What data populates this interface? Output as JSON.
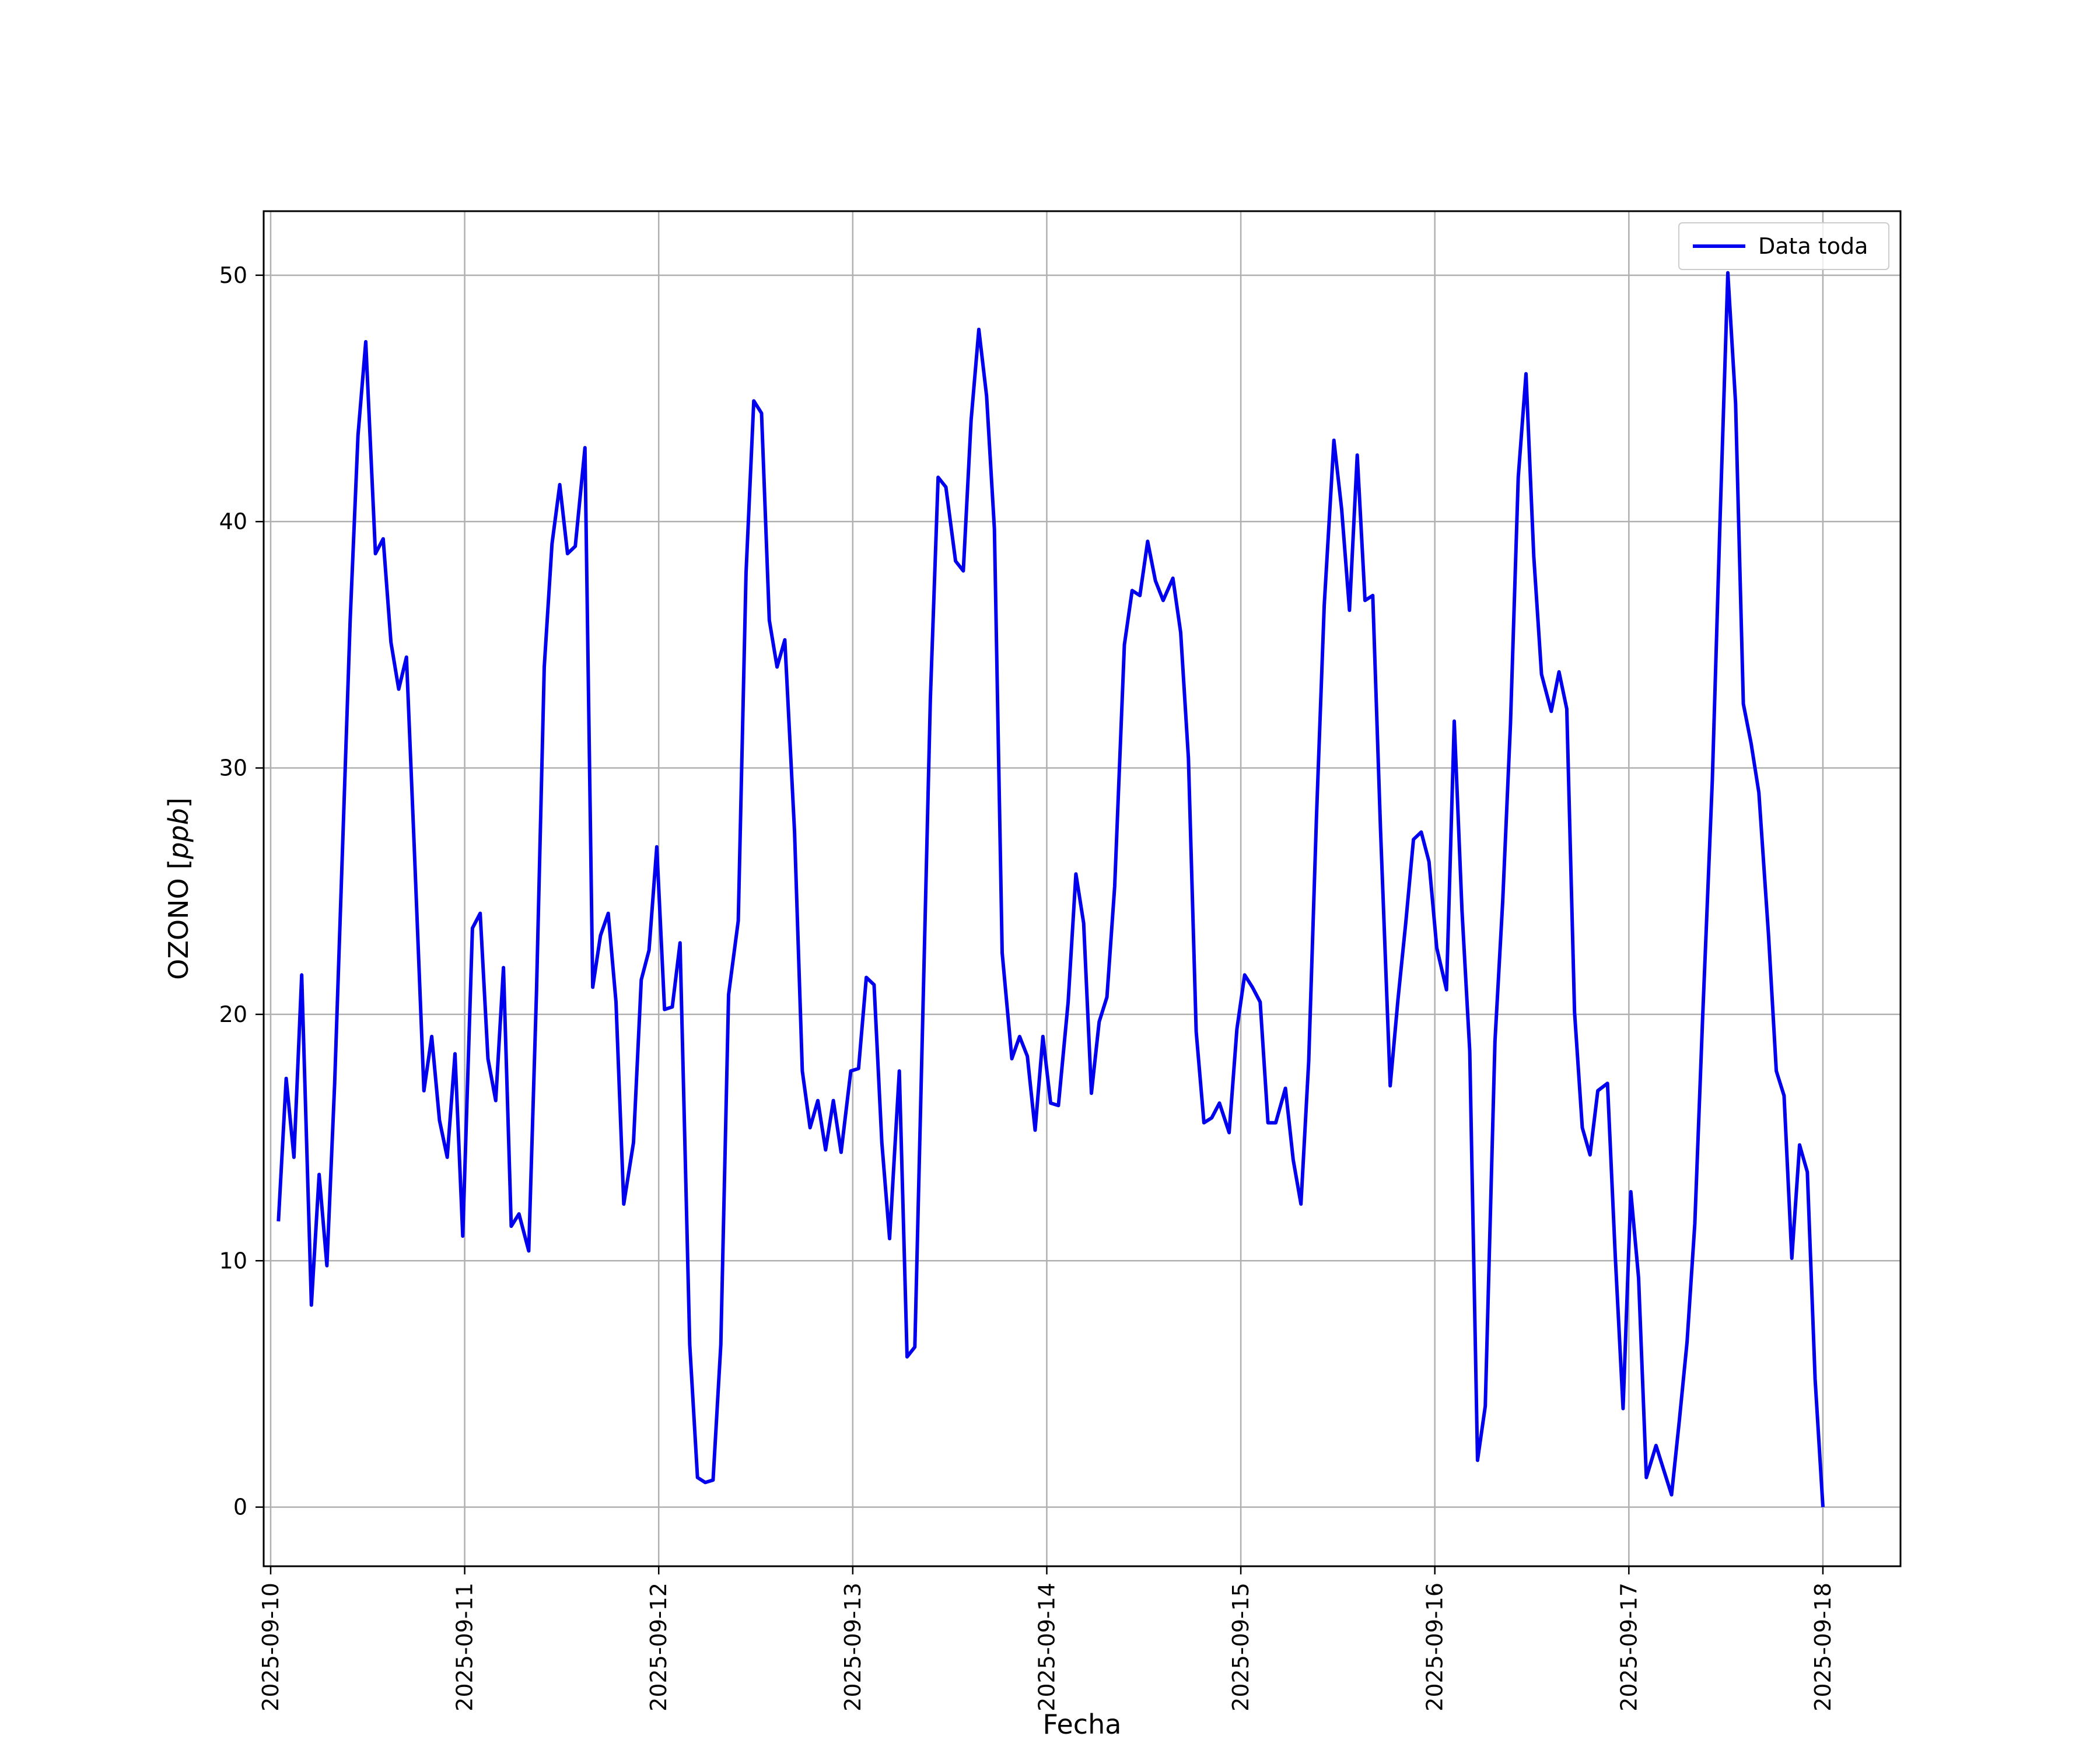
{
  "chart_data": {
    "type": "line",
    "title": "",
    "xlabel": "Fecha",
    "ylabel_main": "OZONO [",
    "ylabel_unit": "ppb",
    "ylabel_end": "]",
    "x_ticks": [
      "2025-09-10",
      "2025-09-11",
      "2025-09-12",
      "2025-09-13",
      "2025-09-14",
      "2025-09-15",
      "2025-09-16",
      "2025-09-17",
      "2025-09-18"
    ],
    "y_ticks": [
      0,
      10,
      20,
      30,
      40,
      50
    ],
    "xlim": [
      -0.036,
      8.4
    ],
    "ylim": [
      -2.4,
      52.6
    ],
    "grid": true,
    "legend_position": "top-right",
    "series_color": "#0000ee",
    "series": [
      {
        "name": "Data toda",
        "x": [
          0.04,
          0.08,
          0.12,
          0.16,
          0.21,
          0.25,
          0.29,
          0.33,
          0.37,
          0.41,
          0.45,
          0.49,
          0.54,
          0.58,
          0.62,
          0.66,
          0.7,
          0.74,
          0.79,
          0.83,
          0.87,
          0.91,
          0.95,
          0.99,
          1.04,
          1.08,
          1.12,
          1.16,
          1.2,
          1.24,
          1.28,
          1.33,
          1.37,
          1.41,
          1.45,
          1.49,
          1.53,
          1.57,
          1.62,
          1.66,
          1.7,
          1.74,
          1.78,
          1.82,
          1.87,
          1.91,
          1.95,
          1.99,
          2.03,
          2.07,
          2.11,
          2.16,
          2.2,
          2.24,
          2.28,
          2.32,
          2.36,
          2.41,
          2.45,
          2.49,
          2.53,
          2.57,
          2.61,
          2.65,
          2.7,
          2.74,
          2.78,
          2.82,
          2.86,
          2.9,
          2.94,
          2.99,
          3.03,
          3.07,
          3.11,
          3.15,
          3.19,
          3.24,
          3.28,
          3.32,
          3.36,
          3.4,
          3.44,
          3.48,
          3.53,
          3.57,
          3.61,
          3.65,
          3.69,
          3.73,
          3.77,
          3.82,
          3.86,
          3.9,
          3.94,
          3.98,
          4.02,
          4.06,
          4.11,
          4.15,
          4.19,
          4.23,
          4.27,
          4.31,
          4.35,
          4.4,
          4.44,
          4.48,
          4.52,
          4.56,
          4.6,
          4.65,
          4.69,
          4.73,
          4.77,
          4.81,
          4.85,
          4.89,
          4.94,
          4.98,
          5.02,
          5.06,
          5.1,
          5.14,
          5.18,
          5.23,
          5.27,
          5.31,
          5.35,
          5.39,
          5.43,
          5.48,
          5.52,
          5.56,
          5.6,
          5.64,
          5.68,
          5.72,
          5.77,
          5.81,
          5.85,
          5.89,
          5.93,
          5.97,
          6.01,
          6.06,
          6.1,
          6.14,
          6.18,
          6.22,
          6.26,
          6.31,
          6.35,
          6.39,
          6.43,
          6.47,
          6.51,
          6.55,
          6.6,
          6.64,
          6.68,
          6.72,
          6.76,
          6.8,
          6.84,
          6.89,
          6.93,
          6.97,
          7.01,
          7.05,
          7.09,
          7.14,
          7.18,
          7.22,
          7.26,
          7.3,
          7.34,
          7.38,
          7.43,
          7.47,
          7.51,
          7.55,
          7.59,
          7.63,
          7.67,
          7.72,
          7.76,
          7.8,
          7.84,
          7.88,
          7.92,
          7.96,
          8.0
        ],
        "y": [
          11.6,
          17.4,
          14.2,
          21.6,
          8.2,
          13.5,
          9.8,
          17.2,
          26.6,
          36.0,
          43.5,
          47.3,
          38.7,
          39.3,
          35.1,
          33.2,
          34.5,
          26.8,
          16.9,
          19.1,
          15.7,
          14.2,
          18.4,
          11.0,
          23.5,
          24.1,
          18.2,
          16.5,
          21.9,
          11.4,
          11.9,
          10.4,
          20.9,
          34.1,
          39.1,
          41.5,
          38.7,
          39.0,
          43.0,
          21.1,
          23.2,
          24.1,
          20.5,
          12.3,
          14.8,
          21.4,
          22.6,
          26.8,
          20.2,
          20.3,
          22.9,
          6.6,
          1.2,
          1.0,
          1.1,
          6.6,
          20.8,
          23.8,
          37.9,
          44.9,
          44.4,
          36.0,
          34.1,
          35.2,
          27.4,
          17.7,
          15.4,
          16.5,
          14.5,
          16.5,
          14.4,
          17.7,
          17.8,
          21.5,
          21.2,
          14.8,
          10.9,
          17.7,
          6.1,
          6.5,
          19.6,
          32.8,
          41.8,
          41.4,
          38.4,
          38.0,
          44.1,
          47.8,
          45.1,
          39.7,
          22.5,
          18.2,
          19.1,
          18.3,
          15.3,
          19.1,
          16.4,
          16.3,
          20.5,
          25.7,
          23.7,
          16.8,
          19.7,
          20.7,
          25.2,
          35.0,
          37.2,
          37.0,
          39.2,
          37.6,
          36.8,
          37.7,
          35.5,
          30.4,
          19.3,
          15.6,
          15.8,
          16.4,
          15.2,
          19.4,
          21.6,
          21.1,
          20.5,
          15.6,
          15.6,
          17.0,
          14.1,
          12.3,
          18.1,
          28.0,
          36.6,
          43.3,
          40.5,
          36.4,
          42.7,
          36.8,
          37.0,
          27.5,
          17.1,
          20.6,
          23.7,
          27.1,
          27.4,
          26.2,
          22.7,
          21.0,
          31.9,
          24.2,
          18.5,
          1.9,
          4.1,
          18.9,
          24.6,
          31.8,
          41.8,
          46.0,
          38.6,
          33.8,
          32.3,
          33.9,
          32.4,
          20.1,
          15.4,
          14.3,
          16.9,
          17.2,
          10.2,
          4.0,
          12.8,
          9.3,
          1.2,
          2.5,
          1.5,
          0.5,
          3.5,
          6.7,
          11.5,
          19.8,
          29.5,
          40.1,
          50.1,
          44.8,
          32.6,
          31.0,
          29.0,
          23.2,
          17.7,
          16.7,
          10.1,
          14.7,
          13.6,
          5.2,
          0.0
        ]
      }
    ]
  }
}
